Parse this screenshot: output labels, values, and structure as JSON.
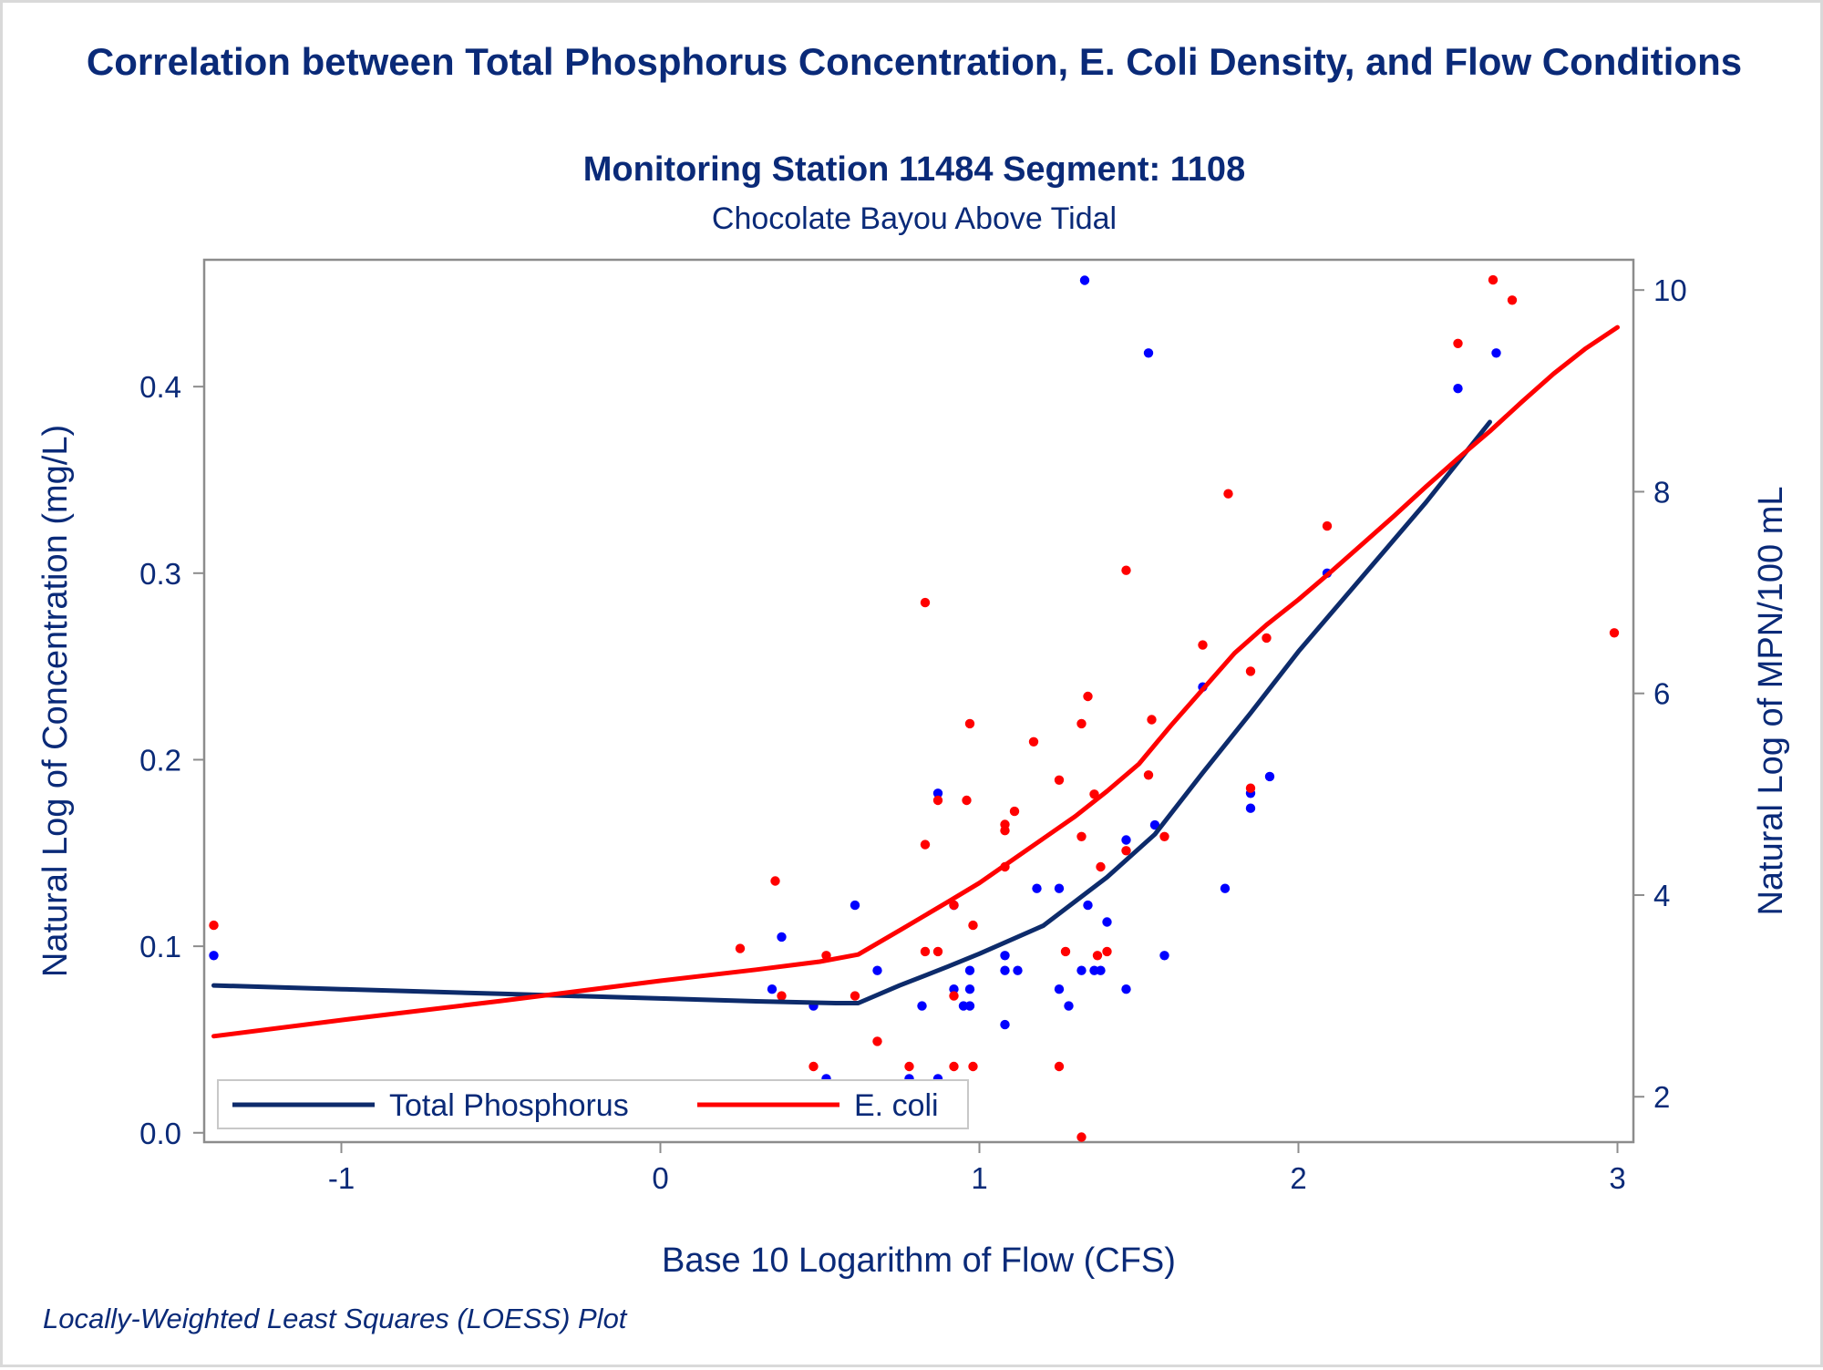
{
  "header": {
    "title": "Correlation between Total Phosphorus Concentration, E. Coli Density, and Flow Conditions",
    "subtitle": "Monitoring Station 11484 Segment: 1108",
    "subtitle2": "Chocolate Bayou Above Tidal"
  },
  "footnote": "Locally-Weighted Least Squares (LOESS) Plot",
  "colors": {
    "text": "#0a2a78",
    "tp_line": "#0d2b6b",
    "tp_points": "#0000ff",
    "ecoli_line": "#ff0000",
    "ecoli_points": "#ff0000",
    "axis": "#8c8c8c"
  },
  "chart_data": {
    "type": "scatter",
    "xlabel": "Base 10 Logarithm of Flow (CFS)",
    "ylabel": "Natural Log of Concentration (mg/L)",
    "y2label": "Natural Log of MPN/100 mL",
    "xlim": [
      -1.43,
      3.05
    ],
    "ylim": [
      -0.005,
      0.468
    ],
    "y2lim": [
      1.55,
      10.3
    ],
    "x_ticks": [
      -1,
      0,
      1,
      2,
      3
    ],
    "x_tick_labels": [
      "-1",
      "0",
      "1",
      "2",
      "3"
    ],
    "y_ticks": [
      0.0,
      0.1,
      0.2,
      0.3,
      0.4
    ],
    "y_tick_labels": [
      "0.0",
      "0.1",
      "0.2",
      "0.3",
      "0.4"
    ],
    "y2_ticks": [
      2,
      4,
      6,
      8,
      10
    ],
    "y2_tick_labels": [
      "2",
      "4",
      "6",
      "8",
      "10"
    ],
    "grid": false,
    "legend_position": "bottom-left inside",
    "legend": [
      "Total Phosphorus",
      "E. coli"
    ],
    "series": [
      {
        "name": "Total Phosphorus",
        "axis": "left",
        "kind": "points",
        "color": "#0000ff",
        "points": [
          [
            -1.4,
            0.095
          ],
          [
            0.35,
            0.077
          ],
          [
            0.38,
            0.105
          ],
          [
            0.48,
            0.068
          ],
          [
            0.52,
            0.029
          ],
          [
            0.61,
            0.122
          ],
          [
            0.68,
            0.087
          ],
          [
            0.78,
            0.029
          ],
          [
            0.82,
            0.068
          ],
          [
            0.87,
            0.029
          ],
          [
            0.87,
            0.182
          ],
          [
            0.92,
            0.122
          ],
          [
            0.92,
            0.077
          ],
          [
            0.95,
            0.068
          ],
          [
            0.97,
            0.068
          ],
          [
            0.97,
            0.077
          ],
          [
            0.97,
            0.087
          ],
          [
            1.08,
            0.058
          ],
          [
            1.08,
            0.087
          ],
          [
            1.08,
            0.095
          ],
          [
            1.12,
            0.087
          ],
          [
            1.18,
            0.131
          ],
          [
            1.25,
            0.077
          ],
          [
            1.25,
            0.131
          ],
          [
            1.28,
            0.068
          ],
          [
            1.32,
            0.087
          ],
          [
            1.33,
            0.457
          ],
          [
            1.34,
            0.122
          ],
          [
            1.36,
            0.087
          ],
          [
            1.38,
            0.087
          ],
          [
            1.4,
            0.113
          ],
          [
            1.46,
            0.077
          ],
          [
            1.46,
            0.157
          ],
          [
            1.53,
            0.418
          ],
          [
            1.55,
            0.165
          ],
          [
            1.58,
            0.095
          ],
          [
            1.7,
            0.239
          ],
          [
            1.77,
            0.131
          ],
          [
            1.85,
            0.174
          ],
          [
            1.85,
            0.182
          ],
          [
            1.91,
            0.191
          ],
          [
            2.09,
            0.3
          ],
          [
            2.5,
            0.399
          ],
          [
            2.62,
            0.418
          ]
        ]
      },
      {
        "name": "E. coli",
        "axis": "right",
        "kind": "points",
        "color": "#ff0000",
        "points": [
          [
            -1.4,
            3.7
          ],
          [
            0.25,
            3.47
          ],
          [
            0.36,
            4.14
          ],
          [
            0.38,
            3.0
          ],
          [
            0.48,
            2.3
          ],
          [
            0.52,
            3.4
          ],
          [
            0.61,
            3.0
          ],
          [
            0.68,
            2.55
          ],
          [
            0.78,
            2.3
          ],
          [
            0.83,
            3.44
          ],
          [
            0.83,
            6.9
          ],
          [
            0.83,
            4.5
          ],
          [
            0.87,
            4.94
          ],
          [
            0.87,
            3.44
          ],
          [
            0.92,
            3.9
          ],
          [
            0.92,
            2.3
          ],
          [
            0.92,
            3.0
          ],
          [
            0.96,
            4.94
          ],
          [
            0.97,
            5.7
          ],
          [
            0.98,
            3.7
          ],
          [
            0.98,
            2.3
          ],
          [
            1.08,
            4.64
          ],
          [
            1.08,
            4.28
          ],
          [
            1.08,
            4.7
          ],
          [
            1.11,
            4.83
          ],
          [
            1.17,
            5.52
          ],
          [
            1.25,
            5.14
          ],
          [
            1.25,
            2.3
          ],
          [
            1.27,
            3.44
          ],
          [
            1.32,
            4.58
          ],
          [
            1.32,
            1.6
          ],
          [
            1.32,
            5.7
          ],
          [
            1.34,
            5.97
          ],
          [
            1.36,
            5.0
          ],
          [
            1.37,
            3.4
          ],
          [
            1.38,
            4.28
          ],
          [
            1.4,
            3.44
          ],
          [
            1.46,
            4.44
          ],
          [
            1.46,
            7.22
          ],
          [
            1.53,
            5.19
          ],
          [
            1.54,
            5.74
          ],
          [
            1.58,
            4.58
          ],
          [
            1.7,
            6.48
          ],
          [
            1.78,
            7.98
          ],
          [
            1.85,
            6.22
          ],
          [
            1.85,
            5.06
          ],
          [
            1.9,
            6.55
          ],
          [
            2.09,
            7.66
          ],
          [
            2.5,
            9.47
          ],
          [
            2.61,
            10.1
          ],
          [
            2.67,
            9.9
          ],
          [
            2.99,
            6.6
          ]
        ]
      },
      {
        "name": "Total Phosphorus",
        "axis": "left",
        "kind": "loess",
        "color": "#0d2b6b",
        "points": [
          [
            -1.4,
            0.079
          ],
          [
            -1.0,
            0.077
          ],
          [
            -0.5,
            0.0745
          ],
          [
            0.0,
            0.072
          ],
          [
            0.3,
            0.0705
          ],
          [
            0.55,
            0.0695
          ],
          [
            0.62,
            0.0695
          ],
          [
            0.75,
            0.079
          ],
          [
            0.9,
            0.089
          ],
          [
            1.0,
            0.096
          ],
          [
            1.2,
            0.111
          ],
          [
            1.4,
            0.137
          ],
          [
            1.55,
            0.16
          ],
          [
            1.7,
            0.193
          ],
          [
            1.85,
            0.225
          ],
          [
            2.0,
            0.258
          ],
          [
            2.2,
            0.298
          ],
          [
            2.4,
            0.338
          ],
          [
            2.6,
            0.381
          ]
        ]
      },
      {
        "name": "E. coli",
        "axis": "right",
        "kind": "loess",
        "color": "#ff0000",
        "points": [
          [
            -1.4,
            2.6
          ],
          [
            -1.0,
            2.76
          ],
          [
            -0.5,
            2.95
          ],
          [
            0.0,
            3.15
          ],
          [
            0.3,
            3.26
          ],
          [
            0.5,
            3.34
          ],
          [
            0.62,
            3.41
          ],
          [
            0.75,
            3.65
          ],
          [
            0.9,
            3.93
          ],
          [
            1.0,
            4.12
          ],
          [
            1.1,
            4.34
          ],
          [
            1.2,
            4.56
          ],
          [
            1.3,
            4.78
          ],
          [
            1.4,
            5.03
          ],
          [
            1.5,
            5.3
          ],
          [
            1.6,
            5.68
          ],
          [
            1.7,
            6.04
          ],
          [
            1.8,
            6.4
          ],
          [
            1.9,
            6.68
          ],
          [
            2.0,
            6.93
          ],
          [
            2.1,
            7.2
          ],
          [
            2.2,
            7.48
          ],
          [
            2.3,
            7.76
          ],
          [
            2.4,
            8.05
          ],
          [
            2.5,
            8.33
          ],
          [
            2.6,
            8.6
          ],
          [
            2.7,
            8.89
          ],
          [
            2.8,
            9.17
          ],
          [
            2.9,
            9.42
          ],
          [
            3.0,
            9.63
          ]
        ]
      }
    ]
  }
}
